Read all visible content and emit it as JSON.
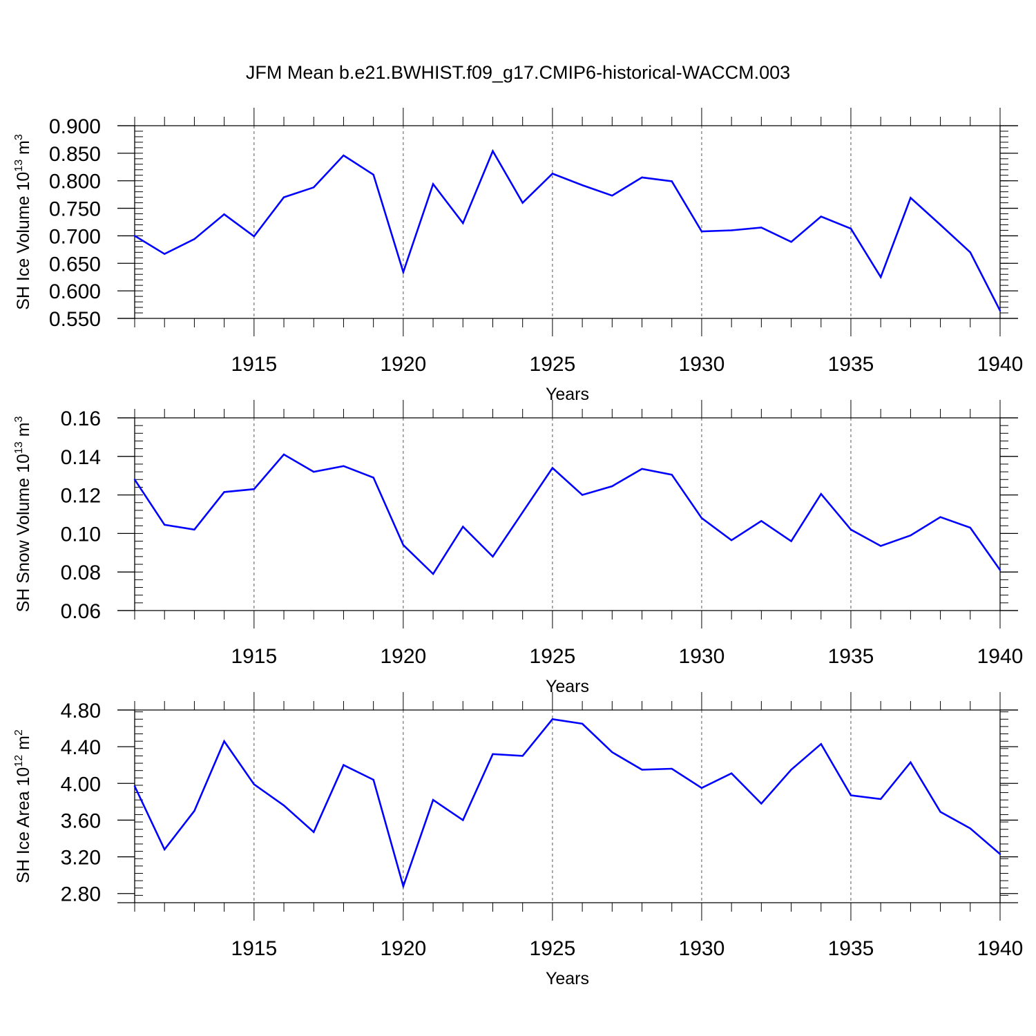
{
  "figure": {
    "title": "JFM Mean b.e21.BWHIST.f09_g17.CMIP6-historical-WACCM.003"
  },
  "colors": {
    "line": "#0000ff",
    "axis": "#000000",
    "grid": "#555555"
  },
  "chart_data": [
    {
      "type": "line",
      "ylabel_main": "SH Ice Volume 10",
      "ylabel_exp": "13",
      "ylabel_unit": " m",
      "ylabel_unit_exp": "3",
      "xlabel": "Years",
      "xlim": [
        1911,
        1940
      ],
      "ylim": [
        0.55,
        0.9
      ],
      "yticks": [
        0.55,
        0.6,
        0.65,
        0.7,
        0.75,
        0.8,
        0.85,
        0.9
      ],
      "ytick_labels": [
        "0.550",
        "0.600",
        "0.650",
        "0.700",
        "0.750",
        "0.800",
        "0.850",
        "0.900"
      ],
      "yminor_step": 0.01,
      "xticks": [
        1915,
        1920,
        1925,
        1930,
        1935,
        1940
      ],
      "xtick_labels": [
        "1915",
        "1920",
        "1925",
        "1930",
        "1935",
        "1940"
      ],
      "x": [
        1911,
        1912,
        1913,
        1914,
        1915,
        1916,
        1917,
        1918,
        1919,
        1920,
        1921,
        1922,
        1923,
        1924,
        1925,
        1926,
        1927,
        1928,
        1929,
        1930,
        1931,
        1932,
        1933,
        1934,
        1935,
        1936,
        1937,
        1938,
        1939,
        1940
      ],
      "series": [
        {
          "name": "SH Ice Volume",
          "values": [
            0.7,
            0.667,
            0.694,
            0.739,
            0.699,
            0.77,
            0.788,
            0.846,
            0.811,
            0.634,
            0.794,
            0.723,
            0.854,
            0.76,
            0.813,
            0.792,
            0.773,
            0.806,
            0.799,
            0.708,
            0.71,
            0.715,
            0.689,
            0.735,
            0.713,
            0.625,
            0.769,
            0.72,
            0.67,
            0.564
          ]
        }
      ]
    },
    {
      "type": "line",
      "ylabel_main": "SH Snow Volume 10",
      "ylabel_exp": "13",
      "ylabel_unit": " m",
      "ylabel_unit_exp": "3",
      "xlabel": "Years",
      "xlim": [
        1911,
        1940
      ],
      "ylim": [
        0.06,
        0.16
      ],
      "yticks": [
        0.06,
        0.08,
        0.1,
        0.12,
        0.14,
        0.16
      ],
      "ytick_labels": [
        "0.06",
        "0.08",
        "0.10",
        "0.12",
        "0.14",
        "0.16"
      ],
      "yminor_step": 0.004,
      "xticks": [
        1915,
        1920,
        1925,
        1930,
        1935,
        1940
      ],
      "xtick_labels": [
        "1915",
        "1920",
        "1925",
        "1930",
        "1935",
        "1940"
      ],
      "x": [
        1911,
        1912,
        1913,
        1914,
        1915,
        1916,
        1917,
        1918,
        1919,
        1920,
        1921,
        1922,
        1923,
        1924,
        1925,
        1926,
        1927,
        1928,
        1929,
        1930,
        1931,
        1932,
        1933,
        1934,
        1935,
        1936,
        1937,
        1938,
        1939,
        1940
      ],
      "series": [
        {
          "name": "SH Snow Volume",
          "values": [
            0.128,
            0.1045,
            0.102,
            0.1215,
            0.123,
            0.141,
            0.132,
            0.135,
            0.129,
            0.094,
            0.079,
            0.1035,
            0.088,
            0.111,
            0.134,
            0.12,
            0.1245,
            0.1335,
            0.1305,
            0.108,
            0.0965,
            0.1065,
            0.096,
            0.1205,
            0.102,
            0.0935,
            0.099,
            0.1085,
            0.103,
            0.081
          ]
        }
      ]
    },
    {
      "type": "line",
      "ylabel_main": "SH Ice Area 10",
      "ylabel_exp": "12",
      "ylabel_unit": " m",
      "ylabel_unit_exp": "2",
      "xlabel": "Years",
      "xlim": [
        1911,
        1940
      ],
      "ylim": [
        2.7,
        4.8
      ],
      "yticks": [
        2.8,
        3.2,
        3.6,
        4.0,
        4.4,
        4.8
      ],
      "ytick_labels": [
        "2.80",
        "3.20",
        "3.60",
        "4.00",
        "4.40",
        "4.80"
      ],
      "yminor_step": 0.08,
      "xticks": [
        1915,
        1920,
        1925,
        1930,
        1935,
        1940
      ],
      "xtick_labels": [
        "1915",
        "1920",
        "1925",
        "1930",
        "1935",
        "1940"
      ],
      "x": [
        1911,
        1912,
        1913,
        1914,
        1915,
        1916,
        1917,
        1918,
        1919,
        1920,
        1921,
        1922,
        1923,
        1924,
        1925,
        1926,
        1927,
        1928,
        1929,
        1930,
        1931,
        1932,
        1933,
        1934,
        1935,
        1936,
        1937,
        1938,
        1939,
        1940
      ],
      "series": [
        {
          "name": "SH Ice Area",
          "values": [
            3.97,
            3.28,
            3.7,
            4.46,
            3.99,
            3.76,
            3.47,
            4.2,
            4.04,
            2.88,
            3.82,
            3.6,
            4.32,
            4.3,
            4.7,
            4.65,
            4.34,
            4.15,
            4.16,
            3.95,
            4.11,
            3.78,
            4.15,
            4.43,
            3.87,
            3.83,
            4.23,
            3.69,
            3.51,
            3.23
          ]
        }
      ]
    }
  ]
}
